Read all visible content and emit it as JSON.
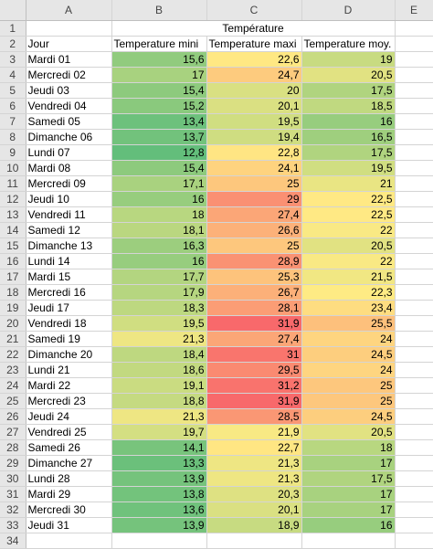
{
  "columns": [
    "A",
    "B",
    "C",
    "D",
    "E"
  ],
  "title": "Température",
  "headers": {
    "A": "Jour",
    "B": "Temperature mini",
    "C": "Temperature maxi",
    "D": "Temperature moy."
  },
  "rows": [
    {
      "day": "Mardi 01",
      "min": "15,6",
      "max": "22,6",
      "avg": "19"
    },
    {
      "day": "Mercredi 02",
      "min": "17",
      "max": "24,7",
      "avg": "20,5"
    },
    {
      "day": "Jeudi 03",
      "min": "15,4",
      "max": "20",
      "avg": "17,5"
    },
    {
      "day": "Vendredi 04",
      "min": "15,2",
      "max": "20,1",
      "avg": "18,5"
    },
    {
      "day": "Samedi 05",
      "min": "13,4",
      "max": "19,5",
      "avg": "16"
    },
    {
      "day": "Dimanche 06",
      "min": "13,7",
      "max": "19,4",
      "avg": "16,5"
    },
    {
      "day": "Lundi 07",
      "min": "12,8",
      "max": "22,8",
      "avg": "17,5"
    },
    {
      "day": "Mardi 08",
      "min": "15,4",
      "max": "24,1",
      "avg": "19,5"
    },
    {
      "day": "Mercredi 09",
      "min": "17,1",
      "max": "25",
      "avg": "21"
    },
    {
      "day": "Jeudi 10",
      "min": "16",
      "max": "29",
      "avg": "22,5"
    },
    {
      "day": "Vendredi 11",
      "min": "18",
      "max": "27,4",
      "avg": "22,5"
    },
    {
      "day": "Samedi 12",
      "min": "18,1",
      "max": "26,6",
      "avg": "22"
    },
    {
      "day": "Dimanche 13",
      "min": "16,3",
      "max": "25",
      "avg": "20,5"
    },
    {
      "day": "Lundi 14",
      "min": "16",
      "max": "28,9",
      "avg": "22"
    },
    {
      "day": "Mardi 15",
      "min": "17,7",
      "max": "25,3",
      "avg": "21,5"
    },
    {
      "day": "Mercredi 16",
      "min": "17,9",
      "max": "26,7",
      "avg": "22,3"
    },
    {
      "day": "Jeudi 17",
      "min": "18,3",
      "max": "28,1",
      "avg": "23,4"
    },
    {
      "day": "Vendredi 18",
      "min": "19,5",
      "max": "31,9",
      "avg": "25,5"
    },
    {
      "day": "Samedi 19",
      "min": "21,3",
      "max": "27,4",
      "avg": "24"
    },
    {
      "day": "Dimanche 20",
      "min": "18,4",
      "max": "31",
      "avg": "24,5"
    },
    {
      "day": "Lundi 21",
      "min": "18,6",
      "max": "29,5",
      "avg": "24"
    },
    {
      "day": "Mardi 22",
      "min": "19,1",
      "max": "31,2",
      "avg": "25"
    },
    {
      "day": "Mercredi 23",
      "min": "18,8",
      "max": "31,9",
      "avg": "25"
    },
    {
      "day": "Jeudi 24",
      "min": "21,3",
      "max": "28,5",
      "avg": "24,5"
    },
    {
      "day": "Vendredi 25",
      "min": "19,7",
      "max": "21,9",
      "avg": "20,5"
    },
    {
      "day": "Samedi 26",
      "min": "14,1",
      "max": "22,7",
      "avg": "18"
    },
    {
      "day": "Dimanche 27",
      "min": "13,3",
      "max": "21,3",
      "avg": "17"
    },
    {
      "day": "Lundi 28",
      "min": "13,9",
      "max": "21,3",
      "avg": "17,5"
    },
    {
      "day": "Mardi 29",
      "min": "13,8",
      "max": "20,3",
      "avg": "17"
    },
    {
      "day": "Mercredi 30",
      "min": "13,6",
      "max": "20,1",
      "avg": "17"
    },
    {
      "day": "Jeudi 31",
      "min": "13,9",
      "max": "18,9",
      "avg": "16"
    }
  ],
  "row_numbers": [
    "1",
    "2",
    "3",
    "4",
    "5",
    "6",
    "7",
    "8",
    "9",
    "10",
    "11",
    "12",
    "13",
    "14",
    "15",
    "16",
    "17",
    "18",
    "19",
    "20",
    "21",
    "22",
    "23",
    "24",
    "25",
    "26",
    "27",
    "28",
    "29",
    "30",
    "31",
    "32",
    "33",
    "34"
  ],
  "colors": {
    "scale_low": "#63BE7B",
    "scale_mid": "#FFEB84",
    "scale_high": "#F8696B",
    "header_bg": "#E6E6E6",
    "gridline": "#D4D4D4"
  }
}
